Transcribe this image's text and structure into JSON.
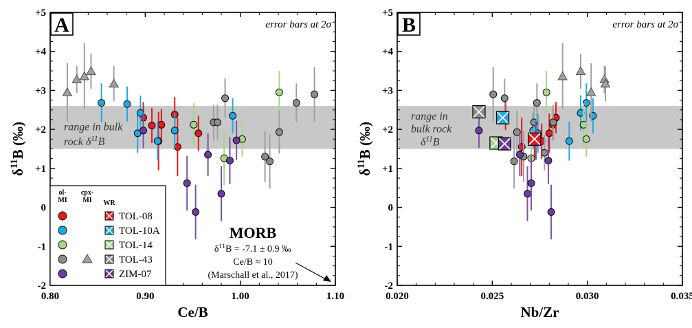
{
  "colors": {
    "band": "#c8c8c8",
    "TOL-08": "#e41a1c",
    "TOL-10A": "#1fa9e1",
    "TOL-14": "#a8d58a",
    "TOL-43": "#8c8c8c",
    "ZIM-07": "#6a3d9a",
    "errbar": {
      "TOL-08": "#e41a1c",
      "TOL-10A": "#1fa9e1",
      "TOL-14": "#a8d58a",
      "TOL-43": "#a0a0a0",
      "ZIM-07": "#7b52ab"
    }
  },
  "legend": {
    "col_headers": [
      "ol-\nMI",
      "cpx-\nMI",
      "WR"
    ],
    "samples": [
      "TOL-08",
      "TOL-10A",
      "TOL-14",
      "TOL-43",
      "ZIM-07"
    ]
  },
  "morb": {
    "title": "MORB",
    "line1": "δ11B = -7.1 ± 0.9 ‰",
    "line2": "Ce/B ≈ 10",
    "line3": "(Marschall et al., 2017)"
  },
  "chart_data": [
    {
      "type": "scatter",
      "panel_letter": "A",
      "note": "error bars at 2σ",
      "band_label": "range in bulk rock δ11B",
      "band": [
        1.5,
        2.6
      ],
      "xlabel": "Ce/B",
      "ylabel": "δ11B (‰)",
      "xlim": [
        0.8,
        1.1
      ],
      "ylim": [
        -2,
        5
      ],
      "xticks": [
        "0.80",
        "0.90",
        "1.00",
        "1.10"
      ],
      "yticks": [
        "-2",
        "-1",
        "0",
        "+1",
        "+2",
        "+3",
        "+4",
        "+5"
      ],
      "series": [
        {
          "name": "TOL-08",
          "marker": "circle",
          "points": [
            {
              "x": 0.898,
              "y": 2.3,
              "err": 0.4
            },
            {
              "x": 0.907,
              "y": 2.1,
              "err": 0.45
            },
            {
              "x": 0.914,
              "y": 1.7,
              "err": 0.75
            },
            {
              "x": 0.917,
              "y": 2.12,
              "err": 0.4
            },
            {
              "x": 0.931,
              "y": 2.38,
              "err": 0.45
            },
            {
              "x": 0.934,
              "y": 1.55,
              "err": 0.75
            },
            {
              "x": 0.956,
              "y": 1.9,
              "err": 0.45
            }
          ]
        },
        {
          "name": "TOL-10A",
          "marker": "circle",
          "points": [
            {
              "x": 0.854,
              "y": 2.68,
              "err": 0.5
            },
            {
              "x": 0.881,
              "y": 2.65,
              "err": 0.45
            },
            {
              "x": 0.892,
              "y": 1.9,
              "err": 0.5
            },
            {
              "x": 0.895,
              "y": 2.42,
              "err": 0.45
            },
            {
              "x": 0.913,
              "y": 1.7,
              "err": 0.5
            },
            {
              "x": 0.931,
              "y": 1.97,
              "err": 0.45
            },
            {
              "x": 0.992,
              "y": 2.35,
              "err": 0.45
            }
          ]
        },
        {
          "name": "TOL-14",
          "marker": "circle",
          "points": [
            {
              "x": 0.951,
              "y": 2.12,
              "err": 0.55
            },
            {
              "x": 0.983,
              "y": 1.26,
              "err": 0.7
            },
            {
              "x": 1.002,
              "y": 1.75,
              "err": 0.45
            },
            {
              "x": 1.041,
              "y": 2.95,
              "err": 0.55
            }
          ]
        },
        {
          "name": "TOL-43",
          "marker": "circle",
          "points": [
            {
              "x": 0.972,
              "y": 2.18,
              "err": 0.45
            },
            {
              "x": 0.976,
              "y": 2.18,
              "err": 0.45
            },
            {
              "x": 0.984,
              "y": 2.8,
              "err": 0.5
            },
            {
              "x": 1.026,
              "y": 1.3,
              "err": 0.65
            },
            {
              "x": 1.031,
              "y": 1.18,
              "err": 0.7
            },
            {
              "x": 1.041,
              "y": 1.93,
              "err": 0.55
            },
            {
              "x": 1.059,
              "y": 2.68,
              "err": 0.5
            },
            {
              "x": 1.078,
              "y": 2.9,
              "err": 0.7
            }
          ]
        },
        {
          "name": "ZIM-07",
          "marker": "circle",
          "points": [
            {
              "x": 0.898,
              "y": 1.97,
              "err": 0.45
            },
            {
              "x": 0.944,
              "y": 0.62,
              "err": 0.7
            },
            {
              "x": 0.953,
              "y": -0.12,
              "err": 0.7
            },
            {
              "x": 0.966,
              "y": 1.35,
              "err": 0.55
            },
            {
              "x": 0.98,
              "y": 0.35,
              "err": 0.7
            },
            {
              "x": 0.989,
              "y": 1.2,
              "err": 0.6
            },
            {
              "x": 0.996,
              "y": 1.72,
              "err": 0.5
            }
          ]
        },
        {
          "name": "TOL-43 cpx-MI",
          "marker": "triangle",
          "points": [
            {
              "x": 0.818,
              "y": 2.95,
              "err": 0.75
            },
            {
              "x": 0.828,
              "y": 3.28,
              "err": 0.35
            },
            {
              "x": 0.836,
              "y": 3.36,
              "err": 0.85
            },
            {
              "x": 0.843,
              "y": 3.49,
              "err": 0.45
            },
            {
              "x": 0.867,
              "y": 3.17,
              "err": 0.45
            }
          ]
        }
      ]
    },
    {
      "type": "scatter",
      "panel_letter": "B",
      "note": "error bars at 2σ",
      "band_label": "range in bulk rock δ11B",
      "band": [
        1.5,
        2.6
      ],
      "xlabel": "Nb/Zr",
      "ylabel": "δ11B (‰)",
      "xlim": [
        0.02,
        0.035
      ],
      "ylim": [
        -2,
        5
      ],
      "xticks": [
        "0.020",
        "0.025",
        "0.030",
        "0.035"
      ],
      "yticks": [
        "-2",
        "-1",
        "0",
        "+1",
        "+2",
        "+3",
        "+4",
        "+5"
      ],
      "series": [
        {
          "name": "TOL-08",
          "marker": "circle",
          "points": [
            {
              "x": 0.0257,
              "y": 2.38,
              "err": 0.4
            },
            {
              "x": 0.02655,
              "y": 1.55,
              "err": 0.75
            },
            {
              "x": 0.02722,
              "y": 1.7,
              "err": 0.5
            },
            {
              "x": 0.0276,
              "y": 1.7,
              "err": 0.45
            },
            {
              "x": 0.028,
              "y": 1.9,
              "err": 0.5
            },
            {
              "x": 0.0282,
              "y": 2.12,
              "err": 0.4
            },
            {
              "x": 0.02835,
              "y": 2.3,
              "err": 0.4
            }
          ]
        },
        {
          "name": "TOL-10A",
          "marker": "circle",
          "points": [
            {
              "x": 0.02715,
              "y": 1.97,
              "err": 0.45
            },
            {
              "x": 0.0274,
              "y": 1.9,
              "err": 0.5
            },
            {
              "x": 0.02905,
              "y": 1.7,
              "err": 0.5
            },
            {
              "x": 0.02965,
              "y": 2.42,
              "err": 0.45
            },
            {
              "x": 0.02995,
              "y": 2.68,
              "err": 0.5
            },
            {
              "x": 0.0303,
              "y": 2.35,
              "err": 0.45
            }
          ]
        },
        {
          "name": "TOL-14",
          "marker": "circle",
          "points": [
            {
              "x": 0.02705,
              "y": 1.26,
              "err": 0.7
            },
            {
              "x": 0.02785,
              "y": 2.95,
              "err": 0.55
            },
            {
              "x": 0.0298,
              "y": 2.12,
              "err": 0.55
            },
            {
              "x": 0.02995,
              "y": 1.75,
              "err": 0.45
            }
          ]
        },
        {
          "name": "TOL-43",
          "marker": "circle",
          "points": [
            {
              "x": 0.02505,
              "y": 2.9,
              "err": 0.7
            },
            {
              "x": 0.02565,
              "y": 2.8,
              "err": 0.5
            },
            {
              "x": 0.02615,
              "y": 1.18,
              "err": 0.7
            },
            {
              "x": 0.0263,
              "y": 1.93,
              "err": 0.55
            },
            {
              "x": 0.02665,
              "y": 1.3,
              "err": 0.65
            },
            {
              "x": 0.0272,
              "y": 2.18,
              "err": 0.45
            },
            {
              "x": 0.02735,
              "y": 2.68,
              "err": 0.5
            },
            {
              "x": 0.02775,
              "y": 1.4,
              "err": 0.45
            },
            {
              "x": 0.0282,
              "y": 2.18,
              "err": 0.45
            }
          ]
        },
        {
          "name": "ZIM-07",
          "marker": "circle",
          "points": [
            {
              "x": 0.0243,
              "y": 1.97,
              "err": 0.45
            },
            {
              "x": 0.02645,
              "y": 1.35,
              "err": 0.55
            },
            {
              "x": 0.02685,
              "y": 0.35,
              "err": 0.7
            },
            {
              "x": 0.02705,
              "y": 0.62,
              "err": 0.7
            },
            {
              "x": 0.0273,
              "y": 1.72,
              "err": 0.5
            },
            {
              "x": 0.02795,
              "y": 1.2,
              "err": 0.6
            },
            {
              "x": 0.0281,
              "y": -0.12,
              "err": 0.7
            }
          ]
        },
        {
          "name": "TOL-43 cpx-MI",
          "marker": "triangle",
          "points": [
            {
              "x": 0.0287,
              "y": 3.36,
              "err": 0.85
            },
            {
              "x": 0.02965,
              "y": 3.49,
              "err": 0.45
            },
            {
              "x": 0.0302,
              "y": 2.95,
              "err": 0.75
            },
            {
              "x": 0.0309,
              "y": 3.28,
              "err": 0.35
            },
            {
              "x": 0.03095,
              "y": 3.17,
              "err": 0.45
            }
          ]
        },
        {
          "name": "WR",
          "marker": "square",
          "points": [
            {
              "x": 0.0243,
              "y": 2.45,
              "sample": "TOL-43"
            },
            {
              "x": 0.02555,
              "y": 2.3,
              "sample": "TOL-10A"
            },
            {
              "x": 0.0252,
              "y": 1.65,
              "sample": "TOL-14"
            },
            {
              "x": 0.02565,
              "y": 1.63,
              "sample": "ZIM-07"
            },
            {
              "x": 0.02722,
              "y": 1.75,
              "sample": "TOL-08"
            }
          ]
        }
      ]
    }
  ]
}
